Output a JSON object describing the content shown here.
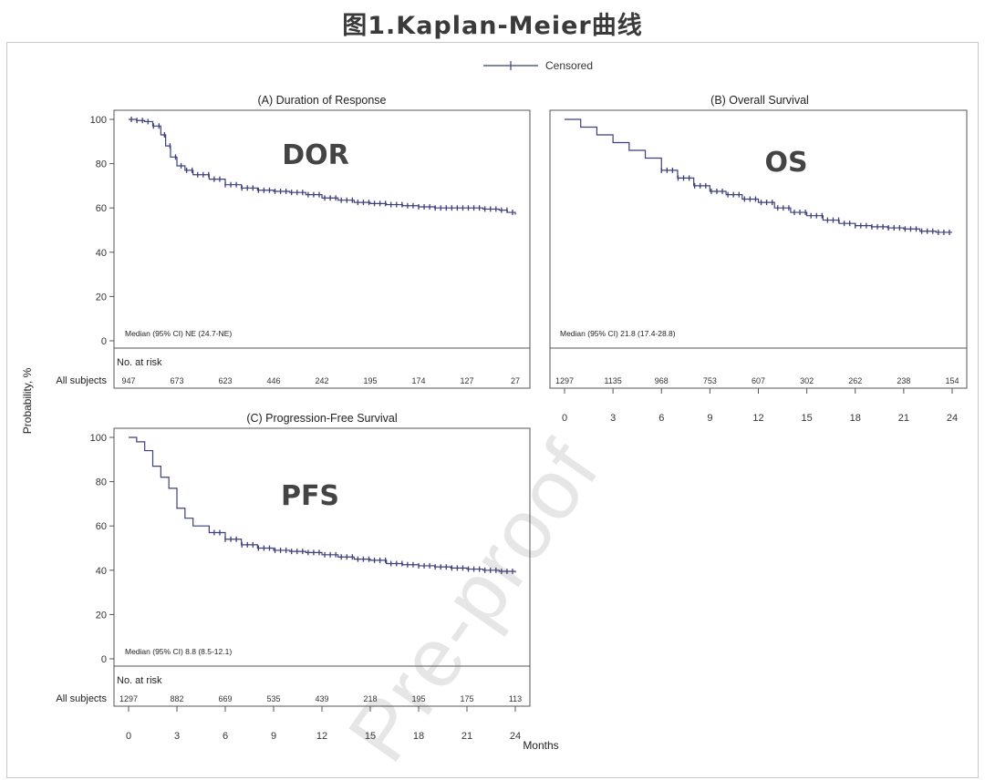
{
  "page": {
    "title": "图1.Kaplan-Meier曲线",
    "watermark": "Pre-proof"
  },
  "legend": {
    "label": "Censored"
  },
  "axis": {
    "y_title": "Probability, %",
    "x_title": "Months",
    "risk_row_label": "All subjects",
    "no_at_risk_label": "No. at risk"
  },
  "chart_data": [
    {
      "id": "A",
      "type": "line",
      "title": "(A) Duration of Response",
      "overlay_label": "DOR",
      "median_text": "Median (95% CI) NE (24.7-NE)",
      "ylabel": "Probability, %",
      "xlabel": "Months",
      "xlim": [
        0,
        24
      ],
      "ylim": [
        0,
        100
      ],
      "yticks": [
        0,
        20,
        40,
        60,
        80,
        100
      ],
      "xticks": [],
      "x": [
        0,
        0.5,
        1,
        1.5,
        2,
        2.3,
        2.6,
        3,
        3.5,
        4,
        5,
        6,
        7,
        8,
        9,
        10,
        11,
        12,
        13,
        14,
        15,
        16,
        17,
        18,
        19,
        20,
        21,
        22,
        23,
        23.5,
        24
      ],
      "y": [
        100,
        99.5,
        99,
        97,
        93,
        88,
        83,
        79,
        77,
        75,
        73,
        70.5,
        69,
        68,
        67.5,
        67,
        66,
        64.5,
        63.5,
        62.5,
        62,
        61.5,
        61,
        60.5,
        60,
        60,
        60,
        59.5,
        59,
        58,
        57
      ],
      "at_risk": [
        "947",
        "673",
        "623",
        "446",
        "242",
        "195",
        "174",
        "127",
        "27"
      ]
    },
    {
      "id": "B",
      "type": "line",
      "title": "(B) Overall Survival",
      "overlay_label": "OS",
      "median_text": "Median (95% CI) 21.8 (17.4-28.8)",
      "ylabel": "Probability, %",
      "xlabel": "Months",
      "xlim": [
        0,
        24
      ],
      "ylim": [
        0,
        100
      ],
      "yticks": [],
      "xticks": [
        0,
        3,
        6,
        9,
        12,
        15,
        18,
        21,
        24
      ],
      "x": [
        0,
        1,
        2,
        3,
        4,
        5,
        6,
        7,
        8,
        9,
        10,
        11,
        12,
        13,
        14,
        15,
        16,
        17,
        18,
        19,
        20,
        21,
        22,
        23,
        24
      ],
      "y": [
        100,
        96.5,
        93,
        89.5,
        86,
        82.5,
        77,
        73.5,
        70,
        67.5,
        66,
        64,
        62.5,
        60,
        58,
        56.5,
        54.5,
        53,
        52,
        51.5,
        51,
        50.5,
        49.5,
        49,
        49
      ],
      "at_risk": [
        "1297",
        "1135",
        "968",
        "753",
        "607",
        "302",
        "262",
        "238",
        "154"
      ]
    },
    {
      "id": "C",
      "type": "line",
      "title": "(C) Progression-Free Survival",
      "overlay_label": "PFS",
      "median_text": "Median (95% CI) 8.8 (8.5-12.1)",
      "ylabel": "Probability, %",
      "xlabel": "Months",
      "xlim": [
        0,
        24
      ],
      "ylim": [
        0,
        100
      ],
      "yticks": [
        0,
        20,
        40,
        60,
        80,
        100
      ],
      "xticks": [
        0,
        3,
        6,
        9,
        12,
        15,
        18,
        21,
        24
      ],
      "x": [
        0,
        0.5,
        1,
        1.5,
        2,
        2.5,
        3,
        3.5,
        4,
        5,
        6,
        7,
        8,
        9,
        10,
        11,
        12,
        13,
        14,
        15,
        16,
        17,
        18,
        19,
        20,
        21,
        22,
        23,
        24
      ],
      "y": [
        100,
        98,
        94,
        87,
        82,
        77,
        68,
        63.5,
        60,
        57,
        54,
        51.5,
        50,
        49,
        48.5,
        48,
        47,
        46,
        45,
        44.5,
        43,
        42.5,
        42,
        41.5,
        41,
        40.5,
        40,
        39.5,
        39
      ],
      "at_risk": [
        "1297",
        "882",
        "669",
        "535",
        "439",
        "218",
        "195",
        "175",
        "113"
      ]
    }
  ]
}
